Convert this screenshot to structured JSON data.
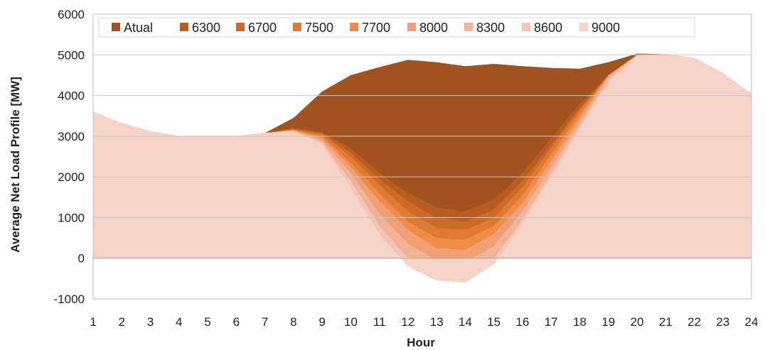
{
  "chart_data": {
    "type": "area",
    "title": "",
    "xlabel": "Hour",
    "ylabel": "Average Net Load Profile  [MW]",
    "xlim": [
      1,
      24
    ],
    "ylim": [
      -1000,
      6000
    ],
    "yticks": [
      -1000,
      0,
      1000,
      2000,
      3000,
      4000,
      5000,
      6000
    ],
    "x": [
      1,
      2,
      3,
      4,
      5,
      6,
      7,
      8,
      9,
      10,
      11,
      12,
      13,
      14,
      15,
      16,
      17,
      18,
      19,
      20,
      21,
      22,
      23,
      24
    ],
    "grid": "horizontal",
    "legend_position": "top",
    "series": [
      {
        "name": "Atual",
        "color": "#a0521f",
        "values": [
          3600,
          3320,
          3120,
          3000,
          3000,
          3000,
          3080,
          3450,
          4100,
          4500,
          4700,
          4880,
          4820,
          4720,
          4780,
          4720,
          4680,
          4660,
          4820,
          5030,
          5020,
          4920,
          4550,
          4050
        ]
      },
      {
        "name": "6300",
        "color": "#b85c20",
        "values": [
          3600,
          3320,
          3120,
          3000,
          3000,
          3000,
          3080,
          3200,
          3100,
          2700,
          2100,
          1600,
          1250,
          1150,
          1450,
          2100,
          2950,
          3800,
          4500,
          5000,
          5020,
          4920,
          4550,
          4050
        ]
      },
      {
        "name": "6700",
        "color": "#cc6a26",
        "values": [
          3600,
          3320,
          3120,
          3000,
          3000,
          3000,
          3080,
          3190,
          3080,
          2600,
          1950,
          1400,
          1000,
          900,
          1200,
          1900,
          2800,
          3700,
          4500,
          5000,
          5020,
          4920,
          4550,
          4050
        ]
      },
      {
        "name": "7500",
        "color": "#e07a32",
        "values": [
          3600,
          3320,
          3120,
          3000,
          3000,
          3000,
          3080,
          3170,
          3050,
          2500,
          1800,
          1150,
          750,
          700,
          1000,
          1750,
          2700,
          3650,
          4500,
          5000,
          5020,
          4920,
          4550,
          4050
        ]
      },
      {
        "name": "7700",
        "color": "#ee8c48",
        "values": [
          3600,
          3320,
          3120,
          3000,
          3000,
          3000,
          3080,
          3160,
          3000,
          2350,
          1600,
          900,
          500,
          450,
          800,
          1550,
          2550,
          3550,
          4500,
          5000,
          5020,
          4920,
          4550,
          4050
        ]
      },
      {
        "name": "8000",
        "color": "#f0a076",
        "values": [
          3600,
          3320,
          3120,
          3000,
          3000,
          3000,
          3080,
          3150,
          2950,
          2250,
          1400,
          700,
          250,
          200,
          600,
          1350,
          2400,
          3450,
          4500,
          5000,
          5020,
          4920,
          4550,
          4050
        ]
      },
      {
        "name": "8300",
        "color": "#f2b298",
        "values": [
          3600,
          3320,
          3120,
          3000,
          3000,
          3000,
          3080,
          3140,
          2900,
          2100,
          1100,
          350,
          -50,
          -100,
          300,
          1150,
          2250,
          3350,
          4450,
          5000,
          5020,
          4920,
          4550,
          4050
        ]
      },
      {
        "name": "8600",
        "color": "#f4c4b4",
        "values": [
          3600,
          3320,
          3120,
          3000,
          3000,
          3000,
          3080,
          3130,
          2850,
          1900,
          800,
          0,
          -400,
          -450,
          0,
          950,
          2100,
          3250,
          4400,
          4990,
          5020,
          4920,
          4550,
          4050
        ]
      },
      {
        "name": "9000",
        "color": "#f5d3c6",
        "values": [
          3600,
          3320,
          3120,
          3000,
          3000,
          3000,
          3080,
          3120,
          2800,
          1750,
          600,
          -200,
          -550,
          -600,
          -150,
          850,
          2000,
          3200,
          4350,
          4980,
          5020,
          4920,
          4550,
          4050
        ]
      }
    ]
  }
}
